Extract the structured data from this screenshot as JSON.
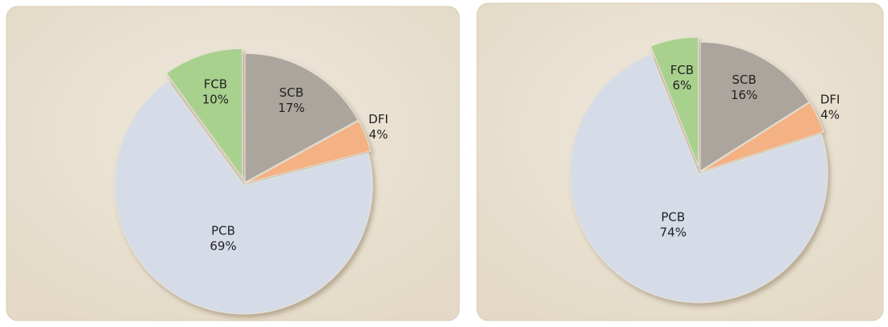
{
  "chart_data": [
    {
      "type": "pie",
      "categories": [
        "SCB",
        "DFI",
        "PCB",
        "FCB"
      ],
      "values": [
        17,
        4,
        69,
        10
      ],
      "value_labels": [
        "17%",
        "4%",
        "69%",
        "10%"
      ],
      "colors": [
        "#aca59d",
        "#f4b183",
        "#d6dce7",
        "#a9d18e"
      ]
    },
    {
      "type": "pie",
      "categories": [
        "SCB",
        "DFI",
        "PCB",
        "FCB"
      ],
      "values": [
        16,
        4,
        74,
        6
      ],
      "value_labels": [
        "16%",
        "4%",
        "74%",
        "6%"
      ],
      "colors": [
        "#aca59d",
        "#f4b183",
        "#d6dce7",
        "#a9d18e"
      ]
    }
  ]
}
